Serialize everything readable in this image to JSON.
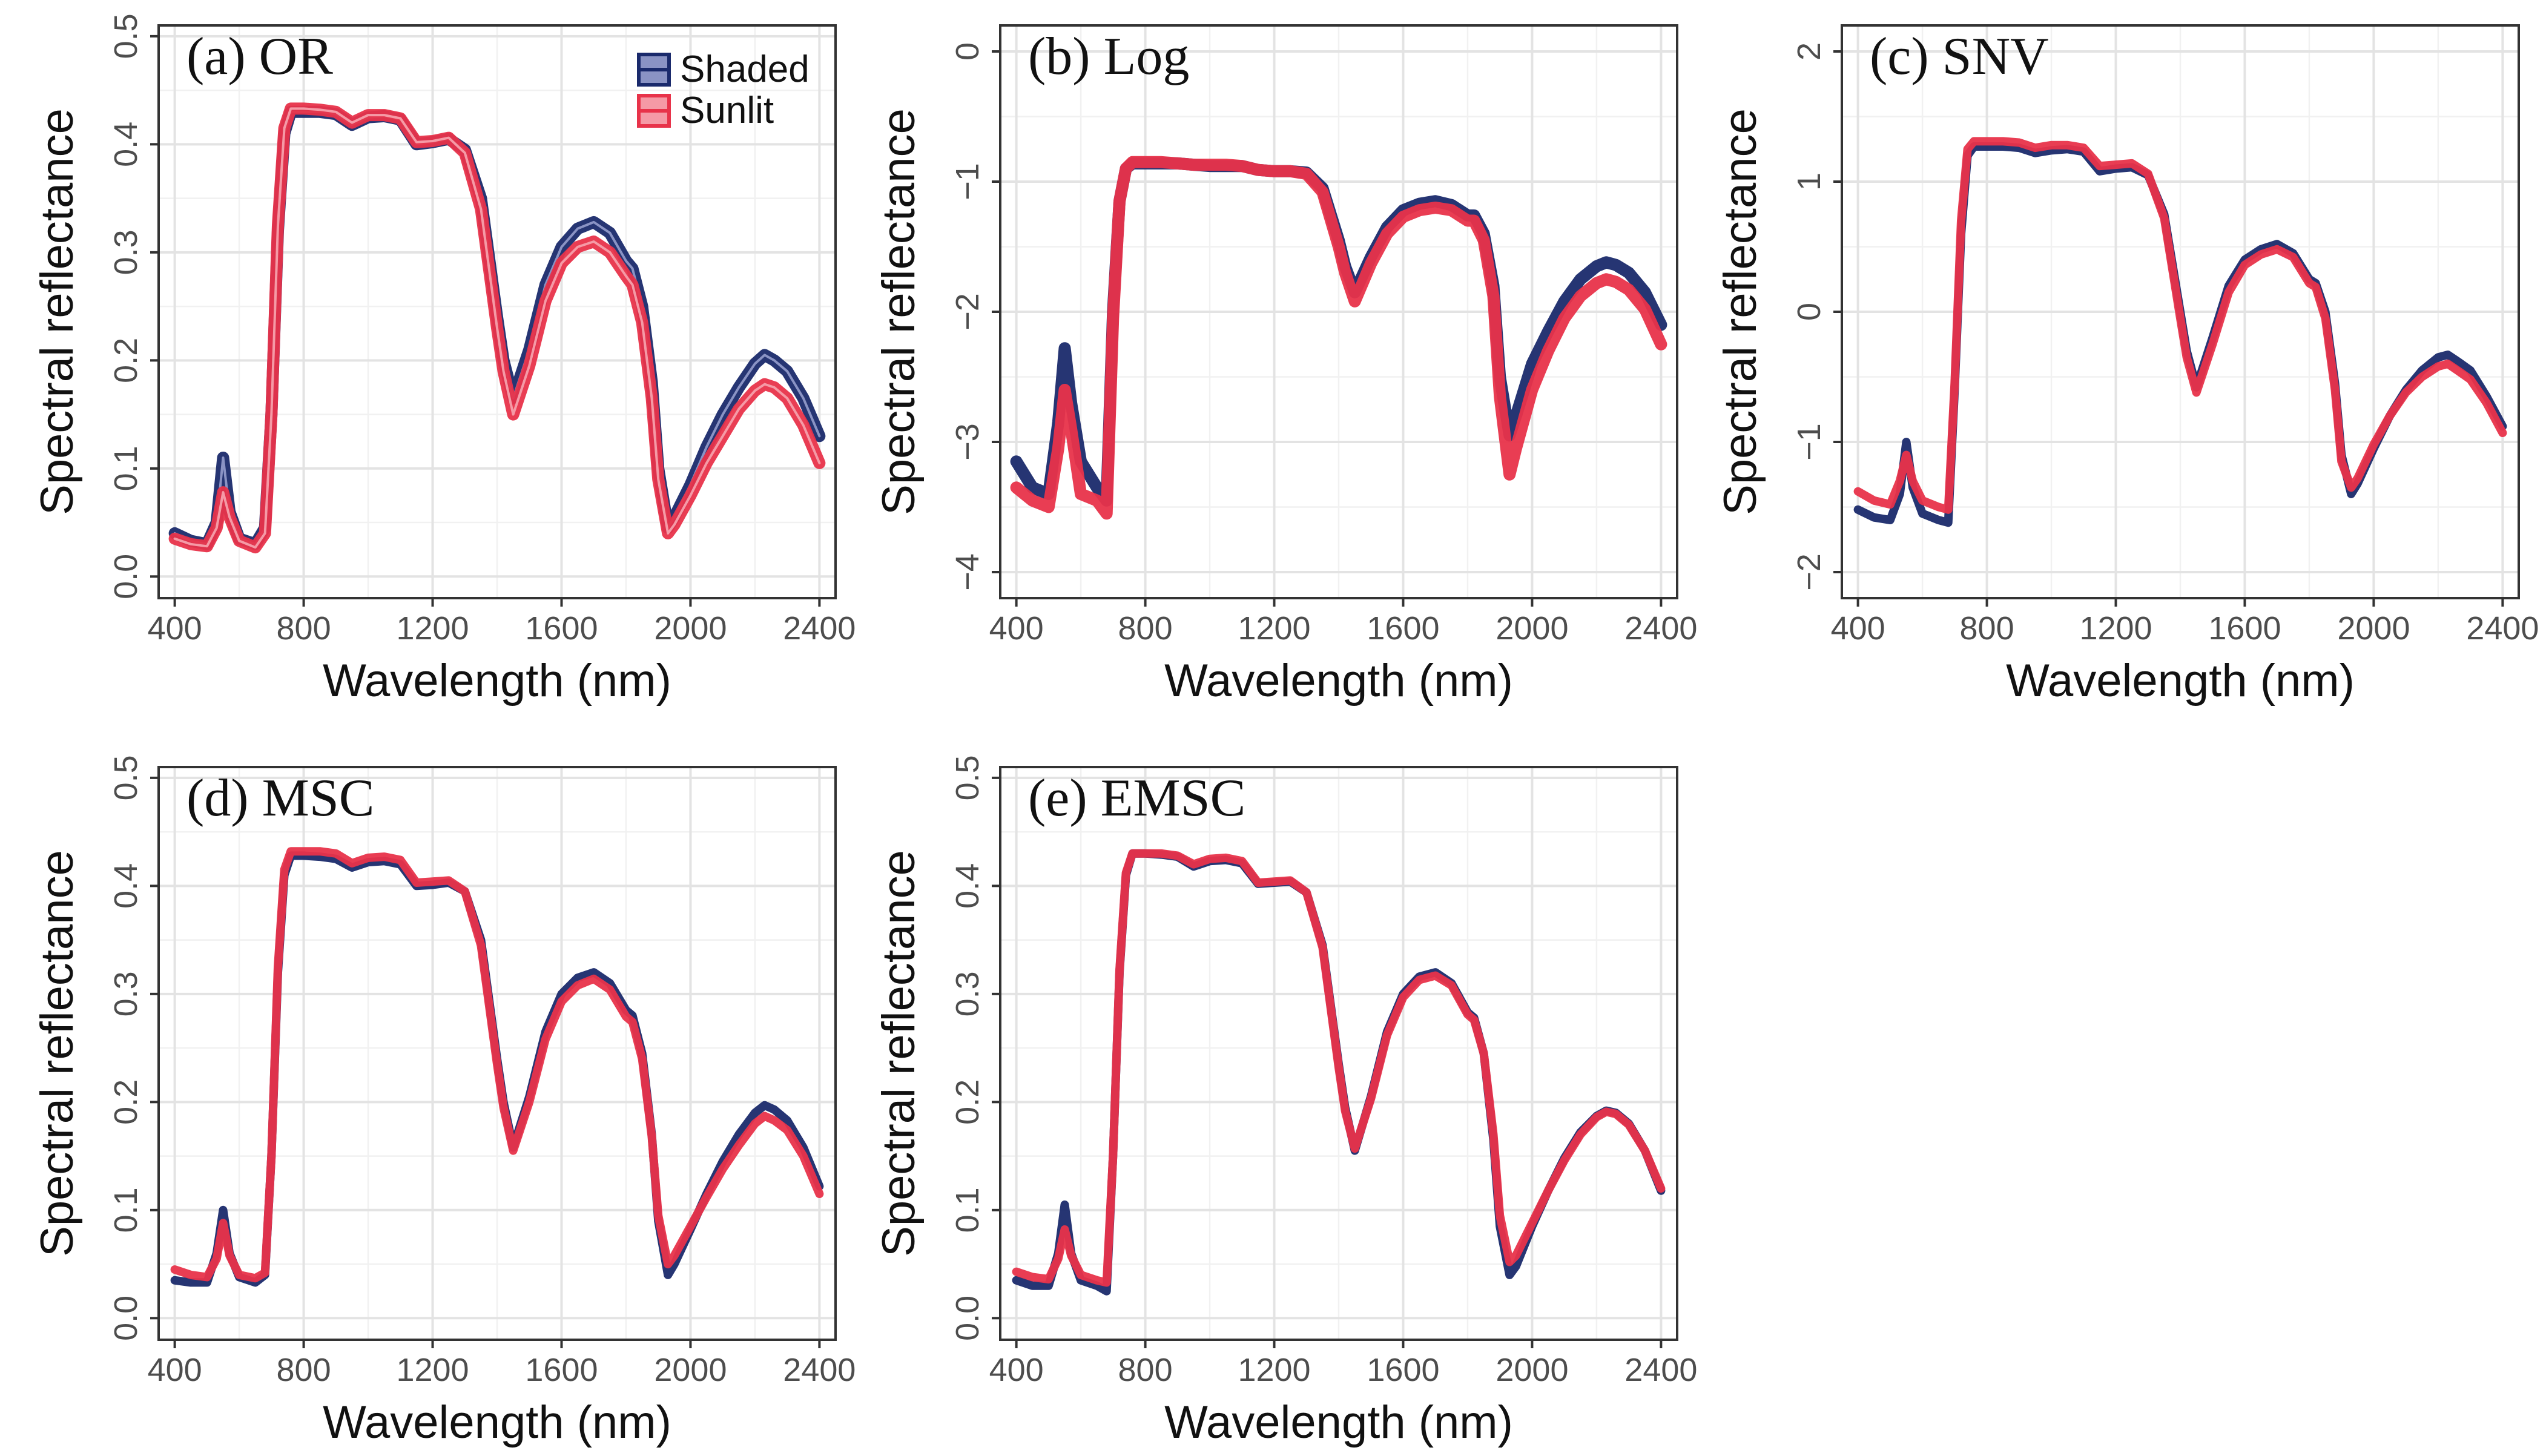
{
  "chart_data": [
    {
      "type": "line",
      "title": "(a) OR",
      "xlabel": "Wavelength (nm)",
      "ylabel": "Spectral reflectance",
      "xlim": [
        350,
        2450
      ],
      "ylim": [
        -0.02,
        0.51
      ],
      "xticks": [
        400,
        800,
        1200,
        1600,
        2000,
        2400
      ],
      "yticks": [
        0.0,
        0.1,
        0.2,
        0.3,
        0.4,
        0.5
      ],
      "ytick_labels": [
        "0.0",
        "0.1",
        "0.2",
        "0.3",
        "0.4",
        "0.5"
      ],
      "grid": true,
      "legend": {
        "position": "top-right",
        "entries": [
          "Shaded",
          "Sunlit"
        ]
      },
      "x": [
        400,
        450,
        500,
        530,
        550,
        570,
        600,
        650,
        680,
        700,
        720,
        740,
        760,
        800,
        850,
        900,
        950,
        1000,
        1050,
        1100,
        1150,
        1200,
        1250,
        1300,
        1350,
        1400,
        1420,
        1450,
        1500,
        1550,
        1600,
        1650,
        1700,
        1750,
        1800,
        1820,
        1850,
        1880,
        1900,
        1930,
        1950,
        2000,
        2050,
        2100,
        2150,
        2200,
        2230,
        2260,
        2300,
        2350,
        2400
      ],
      "series": [
        {
          "name": "Shaded",
          "color": "#1a2a6c",
          "values": [
            0.04,
            0.033,
            0.03,
            0.05,
            0.11,
            0.06,
            0.035,
            0.03,
            0.045,
            0.15,
            0.32,
            0.41,
            0.43,
            0.43,
            0.43,
            0.428,
            0.418,
            0.425,
            0.426,
            0.423,
            0.4,
            0.402,
            0.405,
            0.395,
            0.35,
            0.24,
            0.2,
            0.165,
            0.21,
            0.27,
            0.305,
            0.322,
            0.328,
            0.318,
            0.292,
            0.285,
            0.25,
            0.18,
            0.1,
            0.045,
            0.055,
            0.085,
            0.12,
            0.15,
            0.175,
            0.197,
            0.205,
            0.2,
            0.19,
            0.165,
            0.13
          ]
        },
        {
          "name": "Sunlit",
          "color": "#e8334a",
          "values": [
            0.035,
            0.03,
            0.028,
            0.045,
            0.078,
            0.055,
            0.033,
            0.027,
            0.04,
            0.15,
            0.325,
            0.415,
            0.433,
            0.433,
            0.432,
            0.43,
            0.42,
            0.427,
            0.427,
            0.424,
            0.402,
            0.403,
            0.406,
            0.392,
            0.34,
            0.23,
            0.19,
            0.15,
            0.195,
            0.255,
            0.29,
            0.305,
            0.31,
            0.3,
            0.278,
            0.27,
            0.235,
            0.165,
            0.09,
            0.04,
            0.048,
            0.075,
            0.105,
            0.13,
            0.155,
            0.172,
            0.178,
            0.175,
            0.165,
            0.14,
            0.105
          ]
        }
      ]
    },
    {
      "type": "line",
      "title": "(b) Log",
      "xlabel": "Wavelength (nm)",
      "ylabel": "Spectral reflectance",
      "xlim": [
        350,
        2450
      ],
      "ylim": [
        -4.2,
        0.2
      ],
      "xticks": [
        400,
        800,
        1200,
        1600,
        2000,
        2400
      ],
      "yticks": [
        0,
        -1,
        -2,
        -3,
        -4
      ],
      "ytick_labels": [
        "0",
        "−1",
        "−2",
        "−3",
        "−4"
      ],
      "grid": true,
      "x": [
        400,
        450,
        500,
        530,
        550,
        570,
        600,
        650,
        680,
        700,
        720,
        740,
        760,
        800,
        850,
        900,
        950,
        1000,
        1050,
        1100,
        1150,
        1200,
        1250,
        1300,
        1350,
        1400,
        1420,
        1450,
        1500,
        1550,
        1600,
        1650,
        1700,
        1750,
        1800,
        1820,
        1850,
        1880,
        1900,
        1930,
        1950,
        2000,
        2050,
        2100,
        2150,
        2200,
        2230,
        2260,
        2300,
        2350,
        2400
      ],
      "series": [
        {
          "name": "Shaded",
          "color": "#1a2a6c",
          "values": [
            -3.15,
            -3.35,
            -3.4,
            -2.85,
            -2.28,
            -2.7,
            -3.15,
            -3.35,
            -3.45,
            -2.0,
            -1.15,
            -0.9,
            -0.86,
            -0.86,
            -0.86,
            -0.86,
            -0.87,
            -0.88,
            -0.88,
            -0.88,
            -0.91,
            -0.92,
            -0.92,
            -0.93,
            -1.05,
            -1.45,
            -1.65,
            -1.85,
            -1.58,
            -1.35,
            -1.22,
            -1.17,
            -1.15,
            -1.18,
            -1.26,
            -1.26,
            -1.4,
            -1.8,
            -2.5,
            -2.95,
            -2.8,
            -2.4,
            -2.15,
            -1.92,
            -1.75,
            -1.65,
            -1.62,
            -1.64,
            -1.7,
            -1.85,
            -2.1
          ]
        },
        {
          "name": "Sunlit",
          "color": "#e8334a",
          "values": [
            -3.35,
            -3.45,
            -3.5,
            -3.05,
            -2.6,
            -2.9,
            -3.4,
            -3.45,
            -3.55,
            -2.05,
            -1.15,
            -0.9,
            -0.85,
            -0.85,
            -0.85,
            -0.86,
            -0.87,
            -0.87,
            -0.87,
            -0.88,
            -0.91,
            -0.92,
            -0.92,
            -0.94,
            -1.08,
            -1.5,
            -1.7,
            -1.92,
            -1.63,
            -1.4,
            -1.27,
            -1.22,
            -1.2,
            -1.22,
            -1.3,
            -1.3,
            -1.45,
            -1.88,
            -2.65,
            -3.25,
            -3.05,
            -2.6,
            -2.3,
            -2.05,
            -1.88,
            -1.78,
            -1.75,
            -1.77,
            -1.83,
            -1.98,
            -2.25
          ]
        }
      ]
    },
    {
      "type": "line",
      "title": "(c) SNV",
      "xlabel": "Wavelength (nm)",
      "ylabel": "Spectral reflectance",
      "xlim": [
        350,
        2450
      ],
      "ylim": [
        -2.2,
        2.2
      ],
      "xticks": [
        400,
        800,
        1200,
        1600,
        2000,
        2400
      ],
      "yticks": [
        2,
        1,
        0,
        -1,
        -2
      ],
      "ytick_labels": [
        "2",
        "1",
        "0",
        "−1",
        "−2"
      ],
      "grid": true,
      "x": [
        400,
        450,
        500,
        530,
        550,
        570,
        600,
        650,
        680,
        700,
        720,
        740,
        760,
        800,
        850,
        900,
        950,
        1000,
        1050,
        1100,
        1150,
        1200,
        1250,
        1300,
        1350,
        1400,
        1420,
        1450,
        1500,
        1550,
        1600,
        1650,
        1700,
        1750,
        1800,
        1820,
        1850,
        1880,
        1900,
        1930,
        1950,
        2000,
        2050,
        2100,
        2150,
        2200,
        2230,
        2260,
        2300,
        2350,
        2400
      ],
      "series": [
        {
          "name": "Shaded",
          "color": "#1a2a6c",
          "values": [
            -1.52,
            -1.58,
            -1.6,
            -1.4,
            -1.0,
            -1.35,
            -1.55,
            -1.6,
            -1.62,
            -0.6,
            0.6,
            1.2,
            1.27,
            1.27,
            1.27,
            1.26,
            1.22,
            1.24,
            1.25,
            1.23,
            1.08,
            1.1,
            1.11,
            1.05,
            0.75,
            0.0,
            -0.3,
            -0.58,
            -0.2,
            0.2,
            0.4,
            0.48,
            0.52,
            0.45,
            0.25,
            0.22,
            0.0,
            -0.55,
            -1.1,
            -1.4,
            -1.32,
            -1.05,
            -0.8,
            -0.6,
            -0.45,
            -0.35,
            -0.33,
            -0.38,
            -0.45,
            -0.65,
            -0.88
          ]
        },
        {
          "name": "Sunlit",
          "color": "#e8334a",
          "values": [
            -1.38,
            -1.45,
            -1.48,
            -1.3,
            -1.1,
            -1.3,
            -1.45,
            -1.5,
            -1.52,
            -0.55,
            0.7,
            1.25,
            1.31,
            1.31,
            1.31,
            1.3,
            1.26,
            1.28,
            1.28,
            1.26,
            1.12,
            1.13,
            1.14,
            1.06,
            0.72,
            -0.05,
            -0.35,
            -0.62,
            -0.25,
            0.15,
            0.36,
            0.44,
            0.48,
            0.42,
            0.22,
            0.19,
            -0.05,
            -0.6,
            -1.15,
            -1.35,
            -1.28,
            -1.02,
            -0.8,
            -0.62,
            -0.5,
            -0.42,
            -0.4,
            -0.45,
            -0.52,
            -0.7,
            -0.93
          ]
        }
      ]
    },
    {
      "type": "line",
      "title": "(d) MSC",
      "xlabel": "Wavelength (nm)",
      "ylabel": "Spectral reflectance",
      "xlim": [
        350,
        2450
      ],
      "ylim": [
        -0.02,
        0.51
      ],
      "xticks": [
        400,
        800,
        1200,
        1600,
        2000,
        2400
      ],
      "yticks": [
        0.0,
        0.1,
        0.2,
        0.3,
        0.4,
        0.5
      ],
      "ytick_labels": [
        "0.0",
        "0.1",
        "0.2",
        "0.3",
        "0.4",
        "0.5"
      ],
      "grid": true,
      "x": [
        400,
        450,
        500,
        530,
        550,
        570,
        600,
        650,
        680,
        700,
        720,
        740,
        760,
        800,
        850,
        900,
        950,
        1000,
        1050,
        1100,
        1150,
        1200,
        1250,
        1300,
        1350,
        1400,
        1420,
        1450,
        1500,
        1550,
        1600,
        1650,
        1700,
        1750,
        1800,
        1820,
        1850,
        1880,
        1900,
        1930,
        1950,
        2000,
        2050,
        2100,
        2150,
        2200,
        2230,
        2260,
        2300,
        2350,
        2400
      ],
      "series": [
        {
          "name": "Shaded",
          "color": "#1a2a6c",
          "values": [
            0.035,
            0.033,
            0.033,
            0.06,
            0.1,
            0.06,
            0.038,
            0.033,
            0.04,
            0.15,
            0.32,
            0.41,
            0.428,
            0.428,
            0.427,
            0.425,
            0.417,
            0.422,
            0.423,
            0.42,
            0.4,
            0.401,
            0.403,
            0.395,
            0.35,
            0.24,
            0.2,
            0.158,
            0.205,
            0.265,
            0.3,
            0.315,
            0.32,
            0.31,
            0.285,
            0.28,
            0.245,
            0.17,
            0.09,
            0.04,
            0.05,
            0.082,
            0.115,
            0.145,
            0.17,
            0.19,
            0.197,
            0.193,
            0.183,
            0.158,
            0.122
          ]
        },
        {
          "name": "Sunlit",
          "color": "#e8334a",
          "values": [
            0.045,
            0.04,
            0.038,
            0.055,
            0.088,
            0.058,
            0.04,
            0.037,
            0.042,
            0.15,
            0.325,
            0.415,
            0.432,
            0.432,
            0.432,
            0.43,
            0.421,
            0.426,
            0.427,
            0.424,
            0.403,
            0.404,
            0.405,
            0.395,
            0.345,
            0.235,
            0.195,
            0.155,
            0.2,
            0.258,
            0.293,
            0.308,
            0.314,
            0.304,
            0.279,
            0.274,
            0.24,
            0.168,
            0.095,
            0.05,
            0.058,
            0.085,
            0.112,
            0.138,
            0.16,
            0.18,
            0.187,
            0.183,
            0.174,
            0.15,
            0.115
          ]
        }
      ]
    },
    {
      "type": "line",
      "title": "(e) EMSC",
      "xlabel": "Wavelength (nm)",
      "ylabel": "Spectral reflectance",
      "xlim": [
        350,
        2450
      ],
      "ylim": [
        -0.02,
        0.51
      ],
      "xticks": [
        400,
        800,
        1200,
        1600,
        2000,
        2400
      ],
      "yticks": [
        0.0,
        0.1,
        0.2,
        0.3,
        0.4,
        0.5
      ],
      "ytick_labels": [
        "0.0",
        "0.1",
        "0.2",
        "0.3",
        "0.4",
        "0.5"
      ],
      "grid": true,
      "x": [
        400,
        450,
        500,
        530,
        550,
        570,
        600,
        650,
        680,
        700,
        720,
        740,
        760,
        800,
        850,
        900,
        950,
        1000,
        1050,
        1100,
        1150,
        1200,
        1250,
        1300,
        1350,
        1400,
        1420,
        1450,
        1500,
        1550,
        1600,
        1650,
        1700,
        1750,
        1800,
        1820,
        1850,
        1880,
        1900,
        1930,
        1950,
        2000,
        2050,
        2100,
        2150,
        2200,
        2230,
        2260,
        2300,
        2350,
        2400
      ],
      "series": [
        {
          "name": "Shaded",
          "color": "#1a2a6c",
          "values": [
            0.035,
            0.03,
            0.03,
            0.06,
            0.105,
            0.06,
            0.035,
            0.03,
            0.025,
            0.15,
            0.32,
            0.41,
            0.43,
            0.43,
            0.429,
            0.427,
            0.418,
            0.423,
            0.424,
            0.421,
            0.402,
            0.403,
            0.404,
            0.394,
            0.345,
            0.235,
            0.195,
            0.155,
            0.205,
            0.265,
            0.3,
            0.316,
            0.32,
            0.31,
            0.283,
            0.278,
            0.245,
            0.165,
            0.085,
            0.04,
            0.048,
            0.085,
            0.118,
            0.148,
            0.172,
            0.187,
            0.192,
            0.19,
            0.18,
            0.155,
            0.118
          ]
        },
        {
          "name": "Sunlit",
          "color": "#e8334a",
          "values": [
            0.043,
            0.038,
            0.036,
            0.055,
            0.082,
            0.058,
            0.04,
            0.035,
            0.033,
            0.15,
            0.322,
            0.412,
            0.43,
            0.43,
            0.43,
            0.428,
            0.42,
            0.425,
            0.426,
            0.423,
            0.403,
            0.404,
            0.405,
            0.394,
            0.343,
            0.232,
            0.192,
            0.157,
            0.203,
            0.262,
            0.297,
            0.313,
            0.317,
            0.308,
            0.281,
            0.276,
            0.245,
            0.17,
            0.095,
            0.052,
            0.058,
            0.088,
            0.118,
            0.146,
            0.17,
            0.186,
            0.191,
            0.189,
            0.179,
            0.155,
            0.12
          ]
        }
      ]
    }
  ]
}
